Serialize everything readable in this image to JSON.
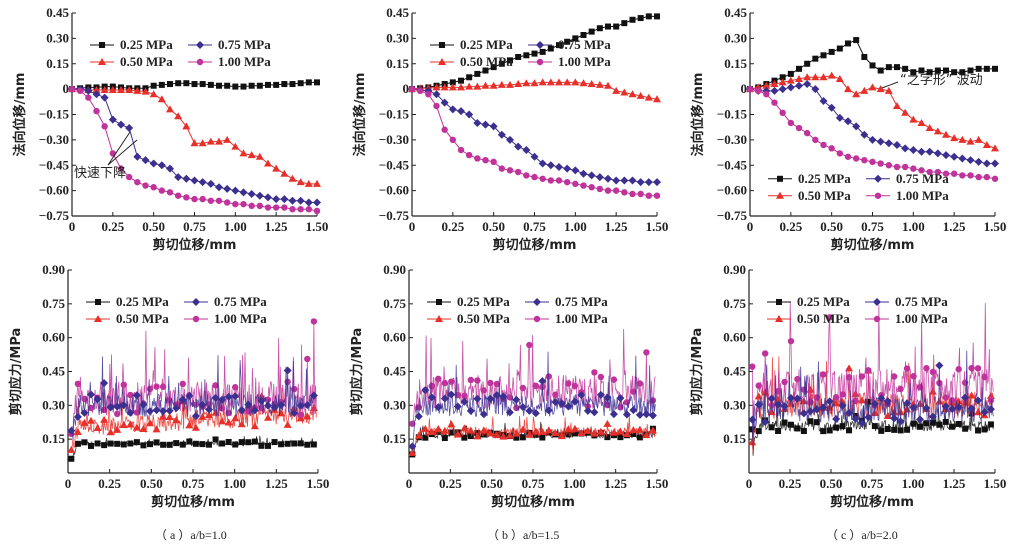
{
  "colors": {
    "s025": "#111111",
    "s050": "#e8302a",
    "s075": "#3b2f8f",
    "s100": "#c0339a"
  },
  "legend_labels": [
    "0.25 MPa",
    "0.50 MPa",
    "0.75 MPa",
    "1.00 MPa"
  ],
  "captions": [
    "（ a ）a/b=1.0",
    "（ b ）a/b=1.5",
    "（ c ）a/b=2.0"
  ],
  "chart_data": [
    {
      "id": "top-a",
      "type": "line",
      "panel": "a",
      "row": "normal-displacement",
      "title": "",
      "xlabel": "剪切位移/mm",
      "ylabel": "法向位移/mm",
      "xlim": [
        0,
        1.5
      ],
      "ylim": [
        -0.75,
        0.45
      ],
      "xticks": [
        "0",
        "0.25",
        "0.50",
        "0.75",
        "1.00",
        "1.25",
        "1.50"
      ],
      "yticks": [
        "0.45",
        "0.30",
        "0.15",
        "0",
        "−0.15",
        "−0.30",
        "−0.45",
        "−0.60",
        "−0.75"
      ],
      "legend_position": "top",
      "annotation": "快速下降",
      "x": [
        0,
        0.05,
        0.1,
        0.15,
        0.2,
        0.25,
        0.3,
        0.35,
        0.4,
        0.45,
        0.5,
        0.55,
        0.6,
        0.65,
        0.7,
        0.75,
        0.8,
        0.85,
        0.9,
        0.95,
        1.0,
        1.05,
        1.1,
        1.15,
        1.2,
        1.25,
        1.3,
        1.35,
        1.4,
        1.45,
        1.5
      ],
      "series": [
        {
          "name": "0.25 MPa",
          "values": [
            0,
            0.005,
            0.01,
            0.01,
            0.015,
            0.015,
            0.01,
            0.005,
            0.005,
            0.005,
            0.02,
            0.025,
            0.03,
            0.035,
            0.035,
            0.03,
            0.03,
            0.025,
            0.02,
            0.02,
            0.015,
            0.015,
            0.02,
            0.02,
            0.025,
            0.025,
            0.03,
            0.03,
            0.035,
            0.04,
            0.04
          ]
        },
        {
          "name": "0.50 MPa",
          "values": [
            0,
            0,
            -0.005,
            -0.005,
            -0.005,
            -0.005,
            -0.005,
            -0.005,
            -0.01,
            -0.015,
            -0.03,
            -0.06,
            -0.12,
            -0.16,
            -0.22,
            -0.32,
            -0.32,
            -0.31,
            -0.31,
            -0.3,
            -0.34,
            -0.38,
            -0.39,
            -0.4,
            -0.44,
            -0.47,
            -0.5,
            -0.53,
            -0.55,
            -0.56,
            -0.56
          ]
        },
        {
          "name": "0.75 MPa",
          "values": [
            0,
            0,
            -0.01,
            -0.03,
            -0.05,
            -0.18,
            -0.21,
            -0.23,
            -0.4,
            -0.42,
            -0.44,
            -0.45,
            -0.47,
            -0.52,
            -0.53,
            -0.54,
            -0.55,
            -0.56,
            -0.58,
            -0.59,
            -0.6,
            -0.61,
            -0.62,
            -0.63,
            -0.64,
            -0.65,
            -0.65,
            -0.66,
            -0.66,
            -0.67,
            -0.67
          ]
        },
        {
          "name": "1.00 MPa",
          "values": [
            0,
            -0.01,
            -0.05,
            -0.13,
            -0.22,
            -0.38,
            -0.47,
            -0.52,
            -0.55,
            -0.57,
            -0.58,
            -0.6,
            -0.61,
            -0.63,
            -0.64,
            -0.65,
            -0.65,
            -0.66,
            -0.66,
            -0.67,
            -0.68,
            -0.68,
            -0.69,
            -0.69,
            -0.7,
            -0.7,
            -0.7,
            -0.71,
            -0.71,
            -0.71,
            -0.72
          ]
        }
      ]
    },
    {
      "id": "top-b",
      "type": "line",
      "panel": "b",
      "row": "normal-displacement",
      "title": "",
      "xlabel": "剪切位移/mm",
      "ylabel": "法向位移/mm",
      "xlim": [
        0,
        1.5
      ],
      "ylim": [
        -0.75,
        0.45
      ],
      "xticks": [
        "0",
        "0.25",
        "0.50",
        "0.75",
        "1.00",
        "1.25",
        "1.50"
      ],
      "yticks": [
        "0.45",
        "0.30",
        "0.15",
        "0",
        "−0.15",
        "−0.30",
        "−0.45",
        "−0.60",
        "−0.75"
      ],
      "legend_position": "top",
      "x": [
        0,
        0.05,
        0.1,
        0.15,
        0.2,
        0.25,
        0.3,
        0.35,
        0.4,
        0.45,
        0.5,
        0.55,
        0.6,
        0.65,
        0.7,
        0.75,
        0.8,
        0.85,
        0.9,
        0.95,
        1.0,
        1.05,
        1.1,
        1.15,
        1.2,
        1.25,
        1.3,
        1.35,
        1.4,
        1.45,
        1.5
      ],
      "series": [
        {
          "name": "0.25 MPa",
          "values": [
            0,
            0.005,
            0.01,
            0.02,
            0.03,
            0.04,
            0.05,
            0.07,
            0.09,
            0.11,
            0.13,
            0.15,
            0.17,
            0.19,
            0.2,
            0.21,
            0.22,
            0.24,
            0.26,
            0.28,
            0.3,
            0.32,
            0.34,
            0.36,
            0.37,
            0.37,
            0.39,
            0.41,
            0.42,
            0.43,
            0.43
          ]
        },
        {
          "name": "0.50 MPa",
          "values": [
            0,
            0.005,
            0.005,
            0.01,
            0.01,
            0.01,
            0.01,
            0.015,
            0.015,
            0.02,
            0.02,
            0.025,
            0.025,
            0.03,
            0.035,
            0.035,
            0.04,
            0.04,
            0.04,
            0.04,
            0.04,
            0.035,
            0.03,
            0.025,
            0.02,
            -0.01,
            -0.02,
            -0.03,
            -0.04,
            -0.05,
            -0.06
          ]
        },
        {
          "name": "0.75 MPa",
          "values": [
            0,
            -0.005,
            -0.01,
            -0.03,
            -0.08,
            -0.12,
            -0.13,
            -0.15,
            -0.2,
            -0.21,
            -0.22,
            -0.27,
            -0.3,
            -0.34,
            -0.36,
            -0.4,
            -0.44,
            -0.45,
            -0.46,
            -0.47,
            -0.48,
            -0.5,
            -0.51,
            -0.52,
            -0.53,
            -0.54,
            -0.54,
            -0.54,
            -0.55,
            -0.55,
            -0.55
          ]
        },
        {
          "name": "1.00 MPa",
          "values": [
            0,
            -0.01,
            -0.03,
            -0.1,
            -0.24,
            -0.3,
            -0.36,
            -0.39,
            -0.41,
            -0.42,
            -0.43,
            -0.47,
            -0.48,
            -0.49,
            -0.51,
            -0.52,
            -0.53,
            -0.54,
            -0.54,
            -0.55,
            -0.56,
            -0.57,
            -0.58,
            -0.59,
            -0.6,
            -0.6,
            -0.61,
            -0.62,
            -0.62,
            -0.63,
            -0.63
          ]
        }
      ]
    },
    {
      "id": "top-c",
      "type": "line",
      "panel": "c",
      "row": "normal-displacement",
      "title": "",
      "xlabel": "剪切位移/mm",
      "ylabel": "法向位移/mm",
      "xlim": [
        0,
        1.5
      ],
      "ylim": [
        -0.75,
        0.45
      ],
      "xticks": [
        "0",
        "0.25",
        "0.50",
        "0.75",
        "1.00",
        "1.25",
        "1.50"
      ],
      "yticks": [
        "0.45",
        "0.30",
        "0.15",
        "0",
        "−0.15",
        "−0.30",
        "−0.45",
        "−0.60",
        "−0.75"
      ],
      "legend_position": "bottom",
      "annotation": "“之字形” 波动",
      "x": [
        0,
        0.05,
        0.1,
        0.15,
        0.2,
        0.25,
        0.3,
        0.35,
        0.4,
        0.45,
        0.5,
        0.55,
        0.6,
        0.65,
        0.7,
        0.75,
        0.8,
        0.85,
        0.9,
        0.95,
        1.0,
        1.05,
        1.1,
        1.15,
        1.2,
        1.25,
        1.3,
        1.35,
        1.4,
        1.45,
        1.5
      ],
      "series": [
        {
          "name": "0.25 MPa",
          "values": [
            0,
            0.01,
            0.03,
            0.05,
            0.07,
            0.09,
            0.12,
            0.15,
            0.18,
            0.2,
            0.22,
            0.24,
            0.27,
            0.29,
            0.19,
            0.14,
            0.11,
            0.13,
            0.13,
            0.12,
            0.1,
            0.11,
            0.1,
            0.11,
            0.11,
            0.1,
            0.1,
            0.11,
            0.12,
            0.12,
            0.12
          ]
        },
        {
          "name": "0.50 MPa",
          "values": [
            0,
            0.01,
            0.02,
            0.03,
            0.04,
            0.05,
            0.06,
            0.07,
            0.07,
            0.07,
            0.08,
            0.06,
            0.0,
            -0.03,
            -0.01,
            0.01,
            0.0,
            -0.01,
            -0.1,
            -0.14,
            -0.18,
            -0.2,
            -0.23,
            -0.25,
            -0.27,
            -0.29,
            -0.3,
            -0.31,
            -0.3,
            -0.33,
            -0.35
          ]
        },
        {
          "name": "0.75 MPa",
          "values": [
            0,
            -0.01,
            -0.01,
            -0.01,
            0.0,
            0.01,
            0.02,
            0.03,
            0.0,
            -0.07,
            -0.11,
            -0.17,
            -0.19,
            -0.22,
            -0.27,
            -0.3,
            -0.31,
            -0.32,
            -0.33,
            -0.35,
            -0.36,
            -0.37,
            -0.37,
            -0.38,
            -0.39,
            -0.4,
            -0.41,
            -0.42,
            -0.43,
            -0.44,
            -0.44
          ]
        },
        {
          "name": "1.00 MPa",
          "values": [
            0,
            -0.01,
            -0.03,
            -0.08,
            -0.14,
            -0.2,
            -0.23,
            -0.26,
            -0.3,
            -0.33,
            -0.35,
            -0.38,
            -0.4,
            -0.41,
            -0.42,
            -0.43,
            -0.44,
            -0.45,
            -0.46,
            -0.46,
            -0.47,
            -0.48,
            -0.49,
            -0.49,
            -0.5,
            -0.5,
            -0.51,
            -0.51,
            -0.52,
            -0.52,
            -0.53
          ]
        }
      ]
    },
    {
      "id": "bot-a",
      "type": "line",
      "panel": "a",
      "row": "shear-stress",
      "title": "",
      "xlabel": "剪切位移/mm",
      "ylabel": "剪切应力/MPa",
      "xlim": [
        0,
        1.5
      ],
      "ylim": [
        0,
        0.9
      ],
      "xticks": [
        "0",
        "0.25",
        "0.50",
        "0.75",
        "1.00",
        "1.25",
        "1.50"
      ],
      "yticks": [
        "0.90",
        "0.75",
        "0.60",
        "0.45",
        "0.30",
        "0.15"
      ],
      "legend_position": "top",
      "noisy": true,
      "series": [
        {
          "name": "0.25 MPa",
          "mean": 0.13,
          "amp": 0.02,
          "start": 0.02
        },
        {
          "name": "0.50 MPa",
          "mean": 0.2,
          "amp": 0.08,
          "start": 0.05,
          "end": 0.26
        },
        {
          "name": "0.75 MPa",
          "mean": 0.3,
          "amp": 0.1,
          "start": 0.08
        },
        {
          "name": "1.00 MPa",
          "mean": 0.33,
          "amp": 0.15,
          "start": 0.1
        }
      ]
    },
    {
      "id": "bot-b",
      "type": "line",
      "panel": "b",
      "row": "shear-stress",
      "title": "",
      "xlabel": "剪切位移/mm",
      "ylabel": "剪切应力/MPa",
      "xlim": [
        0,
        1.5
      ],
      "ylim": [
        0,
        0.9
      ],
      "xticks": [
        "0",
        "0.25",
        "0.50",
        "0.75",
        "1.00",
        "1.25",
        "1.50"
      ],
      "yticks": [
        "0.90",
        "0.75",
        "0.60",
        "0.45",
        "0.30",
        "0.15"
      ],
      "legend_position": "top",
      "noisy": true,
      "series": [
        {
          "name": "0.25 MPa",
          "mean": 0.17,
          "amp": 0.03,
          "start": 0.02
        },
        {
          "name": "0.50 MPa",
          "mean": 0.18,
          "amp": 0.04,
          "start": 0.04
        },
        {
          "name": "0.75 MPa",
          "mean": 0.3,
          "amp": 0.1,
          "start": 0.06
        },
        {
          "name": "1.00 MPa",
          "mean": 0.36,
          "amp": 0.15,
          "start": 0.1
        }
      ]
    },
    {
      "id": "bot-c",
      "type": "line",
      "panel": "c",
      "row": "shear-stress",
      "title": "",
      "xlabel": "剪切位移/mm",
      "ylabel": "剪切应力/MPa",
      "xlim": [
        0,
        1.5
      ],
      "ylim": [
        0,
        0.9
      ],
      "xticks": [
        "0",
        "0.25",
        "0.50",
        "0.75",
        "1.00",
        "1.25",
        "1.50"
      ],
      "yticks": [
        "0.90",
        "0.75",
        "0.60",
        "0.45",
        "0.30",
        "0.15"
      ],
      "legend_position": "top",
      "noisy": true,
      "series": [
        {
          "name": "0.25 MPa",
          "mean": 0.21,
          "amp": 0.05,
          "start": 0.02
        },
        {
          "name": "0.50 MPa",
          "mean": 0.3,
          "amp": 0.12,
          "start": 0.04
        },
        {
          "name": "0.75 MPa",
          "mean": 0.28,
          "amp": 0.12,
          "start": 0.06
        },
        {
          "name": "1.00 MPa",
          "mean": 0.38,
          "amp": 0.17,
          "start": 0.1
        }
      ]
    }
  ]
}
